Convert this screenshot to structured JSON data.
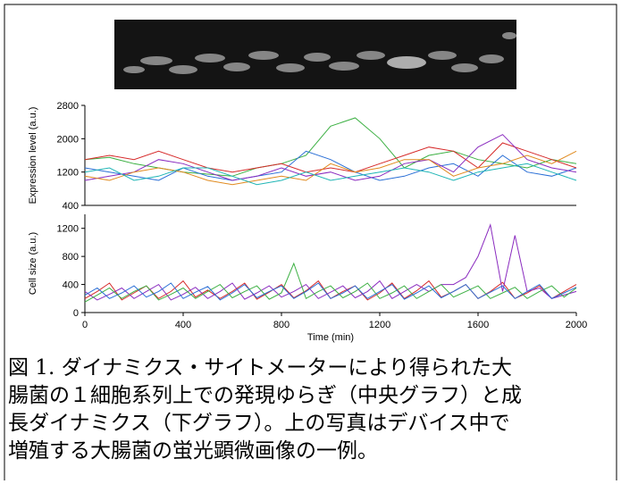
{
  "chart_data": [
    {
      "type": "line",
      "y_label": "Expression level (a.u.)",
      "x": [
        0,
        100,
        200,
        300,
        400,
        500,
        600,
        700,
        800,
        900,
        1000,
        1100,
        1200,
        1300,
        1400,
        1500,
        1600,
        1700,
        1800,
        1900,
        2000
      ],
      "xlim": [
        0,
        2000
      ],
      "ylim": [
        400,
        2800
      ],
      "yticks": [
        400,
        1200,
        2000,
        2800
      ],
      "series": [
        {
          "color": "#3cb043",
          "values": [
            1500,
            1550,
            1400,
            1300,
            1200,
            1150,
            1100,
            1300,
            1400,
            1600,
            2300,
            2500,
            2000,
            1300,
            1600,
            1700,
            1500,
            1400,
            1300,
            1500,
            1400
          ]
        },
        {
          "color": "#2a6fd6",
          "values": [
            1300,
            1200,
            1100,
            1000,
            1300,
            1100,
            1000,
            1100,
            1200,
            1700,
            1500,
            1200,
            1000,
            1100,
            1300,
            1400,
            1100,
            1600,
            1200,
            1100,
            1300
          ]
        },
        {
          "color": "#d62a2a",
          "values": [
            1500,
            1600,
            1500,
            1700,
            1500,
            1300,
            1200,
            1300,
            1400,
            1200,
            1300,
            1200,
            1400,
            1600,
            1800,
            1700,
            1300,
            1900,
            1700,
            1500,
            1300
          ]
        },
        {
          "color": "#8a2bbf",
          "values": [
            1000,
            1100,
            1200,
            1500,
            1400,
            1200,
            1000,
            1100,
            1300,
            1100,
            1200,
            1000,
            1100,
            1400,
            1500,
            1200,
            1800,
            2100,
            1500,
            1300,
            1200
          ]
        },
        {
          "color": "#e08a1e",
          "values": [
            1100,
            1000,
            1200,
            1300,
            1200,
            1000,
            900,
            1000,
            1100,
            1000,
            1400,
            1200,
            1300,
            1500,
            1500,
            1100,
            1300,
            1400,
            1600,
            1400,
            1700
          ]
        },
        {
          "color": "#1fb5b5",
          "values": [
            1200,
            1300,
            1000,
            1100,
            1300,
            1300,
            1100,
            900,
            1000,
            1200,
            1000,
            1100,
            1200,
            1300,
            1200,
            1000,
            1200,
            1300,
            1400,
            1200,
            1000
          ]
        }
      ]
    },
    {
      "type": "line",
      "y_label": "Cell size (a.u.)",
      "x_label": "Time (min)",
      "x": [
        0,
        50,
        100,
        150,
        200,
        250,
        300,
        350,
        400,
        450,
        500,
        550,
        600,
        650,
        700,
        750,
        800,
        850,
        900,
        950,
        1000,
        1050,
        1100,
        1150,
        1200,
        1250,
        1300,
        1350,
        1400,
        1450,
        1500,
        1550,
        1600,
        1650,
        1700,
        1750,
        1800,
        1850,
        1900,
        1950,
        2000
      ],
      "xlim": [
        0,
        2000
      ],
      "xticks": [
        0,
        400,
        800,
        1200,
        1600,
        2000
      ],
      "ylim": [
        0,
        1400
      ],
      "yticks": [
        0,
        400,
        800,
        1200
      ],
      "series": [
        {
          "color": "#d62a2a",
          "values": [
            200,
            300,
            420,
            180,
            280,
            380,
            200,
            300,
            450,
            220,
            320,
            200,
            300,
            420,
            190,
            290,
            400,
            210,
            310,
            450,
            200,
            300,
            380,
            180,
            280,
            420,
            200,
            310,
            450,
            220,
            300,
            400,
            200,
            300,
            430,
            200,
            280,
            380,
            200,
            300,
            400
          ]
        },
        {
          "color": "#8a2bbf",
          "values": [
            300,
            180,
            260,
            350,
            200,
            300,
            400,
            180,
            260,
            360,
            200,
            300,
            420,
            190,
            280,
            380,
            220,
            300,
            400,
            200,
            290,
            380,
            210,
            300,
            450,
            200,
            300,
            400,
            300,
            400,
            400,
            500,
            800,
            1250,
            300,
            1100,
            300,
            350,
            200,
            250,
            300
          ]
        },
        {
          "color": "#3cb043",
          "values": [
            150,
            250,
            350,
            200,
            300,
            380,
            180,
            260,
            350,
            200,
            300,
            400,
            210,
            300,
            380,
            190,
            280,
            700,
            200,
            300,
            380,
            210,
            300,
            420,
            200,
            280,
            380,
            200,
            300,
            400,
            220,
            300,
            380,
            200,
            280,
            360,
            200,
            300,
            380,
            220,
            350
          ]
        },
        {
          "color": "#2a6fd6",
          "values": [
            250,
            350,
            200,
            280,
            380,
            220,
            300,
            420,
            200,
            290,
            370,
            180,
            280,
            400,
            210,
            300,
            380,
            200,
            300,
            420,
            200,
            280,
            380,
            200,
            300,
            400,
            190,
            280,
            380,
            210,
            300,
            400,
            200,
            290,
            380,
            200,
            300,
            400,
            200,
            280,
            360
          ]
        }
      ]
    }
  ],
  "caption": [
    "図 1. ダイナミクス・サイトメーターにより得られた大",
    "腸菌の１細胞系列上での発現ゆらぎ（中央グラフ）と成",
    "長ダイナミクス（下グラフ）。上の写真はデバイス中で",
    "増殖する大腸菌の蛍光顕微画像の一例。"
  ]
}
